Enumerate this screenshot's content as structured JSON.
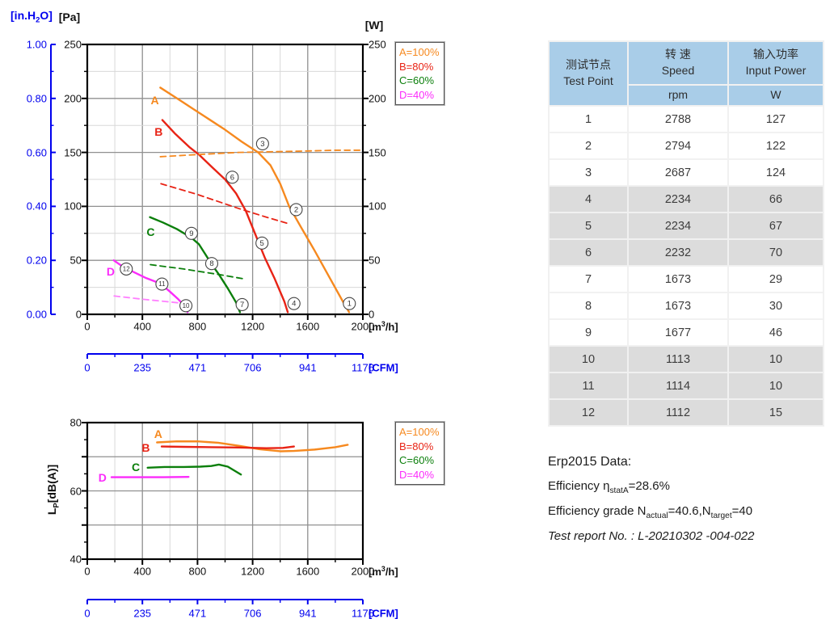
{
  "colors": {
    "A": "#F6891F",
    "B": "#E82315",
    "C": "#0B7F0B",
    "D": "#FB2BFB",
    "D_dash": "#FF80FF",
    "axis_blue": "#0000EE",
    "grid_major": "#909090",
    "grid_minor": "#D8D8D8",
    "table_header_bg": "#A9CDE8",
    "table_shaded_bg": "#DCDCDC"
  },
  "chart_data": [
    {
      "id": "pressure-power-curve",
      "type": "line",
      "title": "",
      "xlabel": "[m^3^/h]",
      "ylabel_pa": "[Pa]",
      "ylabel_inh2o": "[in.H~2~O]",
      "ylabel_w": "[W]",
      "cfm_label": "[CFM]",
      "x_range": [
        0,
        2000
      ],
      "x_ticks": [
        0,
        400,
        800,
        1200,
        1600,
        2000
      ],
      "y_range_pa": [
        0,
        250
      ],
      "y_ticks_pa": [
        0,
        50,
        100,
        150,
        200,
        250
      ],
      "y_ticks_inh2o": [
        "0.00",
        "0.20",
        "0.40",
        "0.60",
        "0.80",
        "1.00"
      ],
      "y_ticks_w": [
        0,
        50,
        100,
        150,
        200,
        250
      ],
      "cfm_ticks": [
        "0",
        "235",
        "471",
        "706",
        "941",
        "1176"
      ],
      "legend": [
        "A=100%",
        "B=80%",
        "C=60%",
        "D=40%"
      ],
      "legend_colors": [
        "A",
        "B",
        "C",
        "D"
      ],
      "series": [
        {
          "name": "A-pressure",
          "color": "A",
          "dash": false,
          "points": [
            [
              530,
              210
            ],
            [
              640,
              201
            ],
            [
              760,
              191
            ],
            [
              880,
              181
            ],
            [
              1000,
              171
            ],
            [
              1120,
              160
            ],
            [
              1240,
              150
            ],
            [
              1330,
              138
            ],
            [
              1400,
              121
            ],
            [
              1465,
              100
            ],
            [
              1550,
              81
            ],
            [
              1650,
              59
            ],
            [
              1750,
              36
            ],
            [
              1850,
              13
            ],
            [
              1900,
              2
            ]
          ]
        },
        {
          "name": "B-pressure",
          "color": "B",
          "dash": false,
          "points": [
            [
              545,
              180
            ],
            [
              640,
              167
            ],
            [
              740,
              155
            ],
            [
              810,
              148
            ],
            [
              900,
              137
            ],
            [
              1000,
              125
            ],
            [
              1080,
              112
            ],
            [
              1150,
              96
            ],
            [
              1220,
              74
            ],
            [
              1290,
              52
            ],
            [
              1360,
              33
            ],
            [
              1430,
              12
            ],
            [
              1455,
              2
            ]
          ]
        },
        {
          "name": "C-pressure",
          "color": "C",
          "dash": false,
          "points": [
            [
              455,
              90
            ],
            [
              550,
              85
            ],
            [
              650,
              79
            ],
            [
              755,
              71
            ],
            [
              810,
              65
            ],
            [
              860,
              55
            ],
            [
              905,
              46
            ],
            [
              955,
              37
            ],
            [
              1020,
              24
            ],
            [
              1080,
              11
            ],
            [
              1108,
              2
            ]
          ]
        },
        {
          "name": "D-pressure",
          "color": "D",
          "dash": false,
          "points": [
            [
              192,
              50
            ],
            [
              260,
              44
            ],
            [
              340,
              39
            ],
            [
              420,
              34
            ],
            [
              500,
              30
            ],
            [
              545,
              27
            ],
            [
              600,
              21
            ],
            [
              660,
              14
            ],
            [
              705,
              8
            ],
            [
              728,
              2
            ]
          ]
        },
        {
          "name": "A-power",
          "color": "A",
          "dash": true,
          "points": [
            [
              530,
              146
            ],
            [
              800,
              148
            ],
            [
              1100,
              150
            ],
            [
              1500,
              151
            ],
            [
              1800,
              152
            ],
            [
              2000,
              152
            ]
          ]
        },
        {
          "name": "B-power",
          "color": "B",
          "dash": true,
          "points": [
            [
              535,
              121
            ],
            [
              800,
              111
            ],
            [
              1100,
              98
            ],
            [
              1300,
              90
            ],
            [
              1460,
              84
            ]
          ]
        },
        {
          "name": "C-power",
          "color": "C",
          "dash": true,
          "points": [
            [
              458,
              46
            ],
            [
              700,
              42
            ],
            [
              950,
              37
            ],
            [
              1130,
              33
            ]
          ]
        },
        {
          "name": "D-power",
          "color": "D_dash",
          "dash": true,
          "points": [
            [
              195,
              17
            ],
            [
              400,
              14
            ],
            [
              560,
              12
            ],
            [
              710,
              10
            ]
          ]
        }
      ],
      "curve_labels": [
        {
          "text": "A",
          "color": "A",
          "x": 490,
          "y": 198
        },
        {
          "text": "B",
          "color": "B",
          "x": 518,
          "y": 169
        },
        {
          "text": "C",
          "color": "C",
          "x": 460,
          "y": 76
        },
        {
          "text": "D",
          "color": "D",
          "x": 170,
          "y": 40
        }
      ],
      "point_markers": [
        {
          "n": "1",
          "x": 1902,
          "y": 10
        },
        {
          "n": "2",
          "x": 1516,
          "y": 97
        },
        {
          "n": "3",
          "x": 1272,
          "y": 158
        },
        {
          "n": "4",
          "x": 1500,
          "y": 10
        },
        {
          "n": "5",
          "x": 1268,
          "y": 66
        },
        {
          "n": "6",
          "x": 1052,
          "y": 127
        },
        {
          "n": "7",
          "x": 1124,
          "y": 9
        },
        {
          "n": "8",
          "x": 903,
          "y": 47
        },
        {
          "n": "9",
          "x": 756,
          "y": 75
        },
        {
          "n": "10",
          "x": 716,
          "y": 8
        },
        {
          "n": "11",
          "x": 542,
          "y": 28
        },
        {
          "n": "12",
          "x": 283,
          "y": 42
        }
      ]
    },
    {
      "id": "noise-curve",
      "type": "line",
      "title": "",
      "xlabel": "[m^3^/h]",
      "ylabel": "L~P~[dB(A)]",
      "cfm_label": "[CFM]",
      "x_range": [
        0,
        2000
      ],
      "x_ticks": [
        0,
        400,
        800,
        1200,
        1600,
        2000
      ],
      "y_range_db": [
        40,
        80
      ],
      "y_ticks_db": [
        40,
        60,
        80
      ],
      "cfm_ticks": [
        "0",
        "235",
        "471",
        "706",
        "941",
        "1176"
      ],
      "legend": [
        "A=100%",
        "B=80%",
        "C=60%",
        "D=40%"
      ],
      "legend_colors": [
        "A",
        "B",
        "C",
        "D"
      ],
      "series": [
        {
          "name": "A-noise",
          "color": "A",
          "dash": false,
          "points": [
            [
              506,
              74.2
            ],
            [
              650,
              74.5
            ],
            [
              800,
              74.5
            ],
            [
              950,
              74.1
            ],
            [
              1100,
              73.2
            ],
            [
              1250,
              72.2
            ],
            [
              1400,
              71.6
            ],
            [
              1500,
              71.7
            ],
            [
              1650,
              72.1
            ],
            [
              1800,
              72.8
            ],
            [
              1890,
              73.5
            ]
          ]
        },
        {
          "name": "B-noise",
          "color": "B",
          "dash": false,
          "points": [
            [
              540,
              73
            ],
            [
              700,
              72.9
            ],
            [
              900,
              72.8
            ],
            [
              1100,
              72.7
            ],
            [
              1300,
              72.5
            ],
            [
              1420,
              72.6
            ],
            [
              1500,
              73
            ]
          ]
        },
        {
          "name": "C-noise",
          "color": "C",
          "dash": false,
          "points": [
            [
              438,
              66.8
            ],
            [
              560,
              67
            ],
            [
              700,
              67
            ],
            [
              820,
              67.1
            ],
            [
              900,
              67.3
            ],
            [
              955,
              67.7
            ],
            [
              1020,
              67.1
            ],
            [
              1115,
              64.8
            ]
          ]
        },
        {
          "name": "D-noise",
          "color": "D",
          "dash": false,
          "points": [
            [
              176,
              64
            ],
            [
              350,
              64
            ],
            [
              550,
              64
            ],
            [
              735,
              64.1
            ]
          ]
        }
      ],
      "curve_labels": [
        {
          "text": "A",
          "color": "A",
          "x": 515,
          "y": 76.6
        },
        {
          "text": "B",
          "color": "B",
          "x": 425,
          "y": 72.6
        },
        {
          "text": "C",
          "color": "C",
          "x": 352,
          "y": 67.0
        },
        {
          "text": "D",
          "color": "D",
          "x": 110,
          "y": 63.8
        }
      ],
      "point_markers": []
    }
  ],
  "table": {
    "header": {
      "col1_zh": "测试节点",
      "col1_en": "Test Point",
      "col2_zh": "转 速",
      "col2_en": "Speed",
      "col2_unit": "rpm",
      "col3_zh": "输入功率",
      "col3_en": "Input Power",
      "col3_unit": "W"
    },
    "rows": [
      {
        "point": "1",
        "speed": "2788",
        "power": "127",
        "shaded": false
      },
      {
        "point": "2",
        "speed": "2794",
        "power": "122",
        "shaded": false
      },
      {
        "point": "3",
        "speed": "2687",
        "power": "124",
        "shaded": false
      },
      {
        "point": "4",
        "speed": "2234",
        "power": "66",
        "shaded": true
      },
      {
        "point": "5",
        "speed": "2234",
        "power": "67",
        "shaded": true
      },
      {
        "point": "6",
        "speed": "2232",
        "power": "70",
        "shaded": true
      },
      {
        "point": "7",
        "speed": "1673",
        "power": "29",
        "shaded": false
      },
      {
        "point": "8",
        "speed": "1673",
        "power": "30",
        "shaded": false
      },
      {
        "point": "9",
        "speed": "1677",
        "power": "46",
        "shaded": false
      },
      {
        "point": "10",
        "speed": "1113",
        "power": "10",
        "shaded": true
      },
      {
        "point": "11",
        "speed": "1114",
        "power": "10",
        "shaded": true
      },
      {
        "point": "12",
        "speed": "1112",
        "power": "15",
        "shaded": true
      }
    ]
  },
  "erp": {
    "title": "Erp2015  Data:",
    "efficiency": "Efficiency η~statA~=28.6%",
    "grade": "Efficiency grade N~actual~=40.6,N~target~=40",
    "report": "Test report No.  : L-20210302 -004-022"
  }
}
